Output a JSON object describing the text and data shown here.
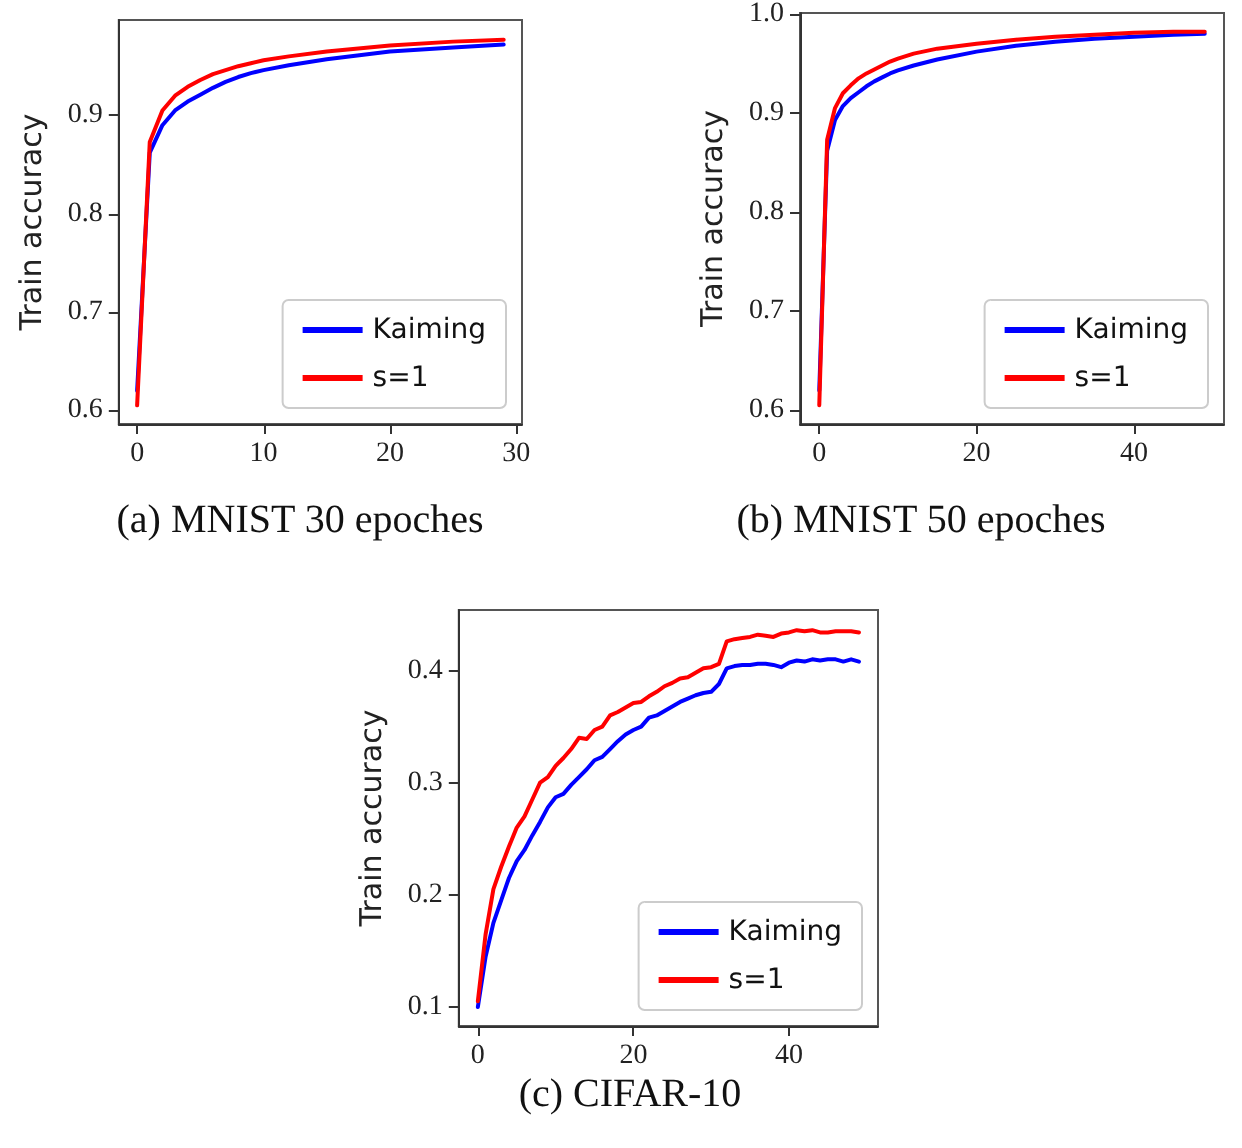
{
  "chart_data": [
    {
      "type": "line",
      "title": "(a) MNIST 30 epoches",
      "ylabel": "Train accuracy",
      "x": [
        0,
        1,
        2,
        3,
        4,
        5,
        6,
        7,
        8,
        9,
        10,
        12,
        15,
        20,
        25,
        29
      ],
      "xlim": [
        -1.45,
        30.45
      ],
      "xticks": [
        0,
        10,
        20,
        30
      ],
      "ylim": [
        0.586,
        0.997
      ],
      "yticks": [
        0.6,
        0.7,
        0.8,
        0.9
      ],
      "grid": false,
      "legend": "bottom right",
      "marker": "none",
      "line_style": "solid",
      "series": [
        {
          "name": "Kaiming",
          "color": "#0000ff",
          "values": [
            0.62,
            0.862,
            0.89,
            0.905,
            0.914,
            0.921,
            0.928,
            0.934,
            0.939,
            0.943,
            0.946,
            0.951,
            0.957,
            0.965,
            0.969,
            0.972
          ]
        },
        {
          "name": "s=1",
          "color": "#ff0000",
          "values": [
            0.605,
            0.873,
            0.905,
            0.92,
            0.929,
            0.936,
            0.942,
            0.946,
            0.95,
            0.953,
            0.956,
            0.96,
            0.965,
            0.971,
            0.975,
            0.977
          ]
        }
      ]
    },
    {
      "type": "line",
      "title": "(b) MNIST 50 epoches",
      "ylabel": "Train accuracy",
      "x": [
        0,
        1,
        2,
        3,
        4,
        5,
        6,
        7,
        8,
        9,
        10,
        12,
        15,
        20,
        25,
        30,
        35,
        40,
        45,
        49
      ],
      "xlim": [
        -2.45,
        51.45
      ],
      "xticks": [
        0,
        20,
        40
      ],
      "ylim": [
        0.586,
        1.001
      ],
      "yticks": [
        0.6,
        0.7,
        0.8,
        0.9,
        {
          "value": 1,
          "label": "1.0"
        }
      ],
      "grid": false,
      "legend": "bottom right",
      "marker": "none",
      "line_style": "solid",
      "series": [
        {
          "name": "Kaiming",
          "color": "#0000ff",
          "values": [
            0.62,
            0.862,
            0.893,
            0.907,
            0.915,
            0.921,
            0.927,
            0.932,
            0.936,
            0.94,
            0.943,
            0.948,
            0.954,
            0.962,
            0.968,
            0.972,
            0.975,
            0.977,
            0.979,
            0.98
          ]
        },
        {
          "name": "s=1",
          "color": "#ff0000",
          "values": [
            0.605,
            0.873,
            0.905,
            0.92,
            0.928,
            0.935,
            0.94,
            0.944,
            0.948,
            0.952,
            0.955,
            0.96,
            0.965,
            0.97,
            0.974,
            0.977,
            0.979,
            0.981,
            0.982,
            0.982
          ]
        }
      ]
    },
    {
      "type": "line",
      "title": "(c) CIFAR-10",
      "ylabel": "Train accuracy",
      "x": [
        0,
        1,
        2,
        3,
        4,
        5,
        6,
        7,
        8,
        9,
        10,
        11,
        12,
        13,
        14,
        15,
        16,
        17,
        18,
        19,
        20,
        21,
        22,
        23,
        24,
        25,
        26,
        27,
        28,
        29,
        30,
        31,
        32,
        33,
        34,
        35,
        36,
        37,
        38,
        39,
        40,
        41,
        42,
        43,
        44,
        45,
        46,
        47,
        48,
        49
      ],
      "xlim": [
        -2.45,
        51.45
      ],
      "xticks": [
        0,
        20,
        40
      ],
      "ylim": [
        0.083,
        0.454
      ],
      "yticks": [
        0.1,
        0.2,
        0.3,
        0.4
      ],
      "grid": false,
      "legend": "bottom right",
      "marker": "none",
      "line_style": "solid",
      "series": [
        {
          "name": "Kaiming",
          "color": "#0000ff",
          "values": [
            0.1,
            0.145,
            0.175,
            0.195,
            0.215,
            0.23,
            0.24,
            0.253,
            0.265,
            0.278,
            0.287,
            0.29,
            0.298,
            0.305,
            0.312,
            0.32,
            0.323,
            0.33,
            0.337,
            0.343,
            0.347,
            0.35,
            0.358,
            0.36,
            0.364,
            0.368,
            0.372,
            0.375,
            0.378,
            0.38,
            0.381,
            0.388,
            0.402,
            0.404,
            0.405,
            0.405,
            0.406,
            0.406,
            0.405,
            0.403,
            0.407,
            0.409,
            0.408,
            0.41,
            0.409,
            0.41,
            0.41,
            0.408,
            0.41,
            0.408
          ]
        },
        {
          "name": "s=1",
          "color": "#ff0000",
          "values": [
            0.105,
            0.165,
            0.205,
            0.225,
            0.243,
            0.26,
            0.27,
            0.285,
            0.3,
            0.305,
            0.315,
            0.322,
            0.33,
            0.34,
            0.339,
            0.347,
            0.35,
            0.36,
            0.363,
            0.367,
            0.371,
            0.372,
            0.377,
            0.381,
            0.386,
            0.389,
            0.393,
            0.394,
            0.398,
            0.402,
            0.403,
            0.406,
            0.426,
            0.428,
            0.429,
            0.43,
            0.432,
            0.431,
            0.43,
            0.433,
            0.434,
            0.436,
            0.435,
            0.436,
            0.434,
            0.434,
            0.435,
            0.435,
            0.435,
            0.434
          ]
        }
      ]
    }
  ]
}
